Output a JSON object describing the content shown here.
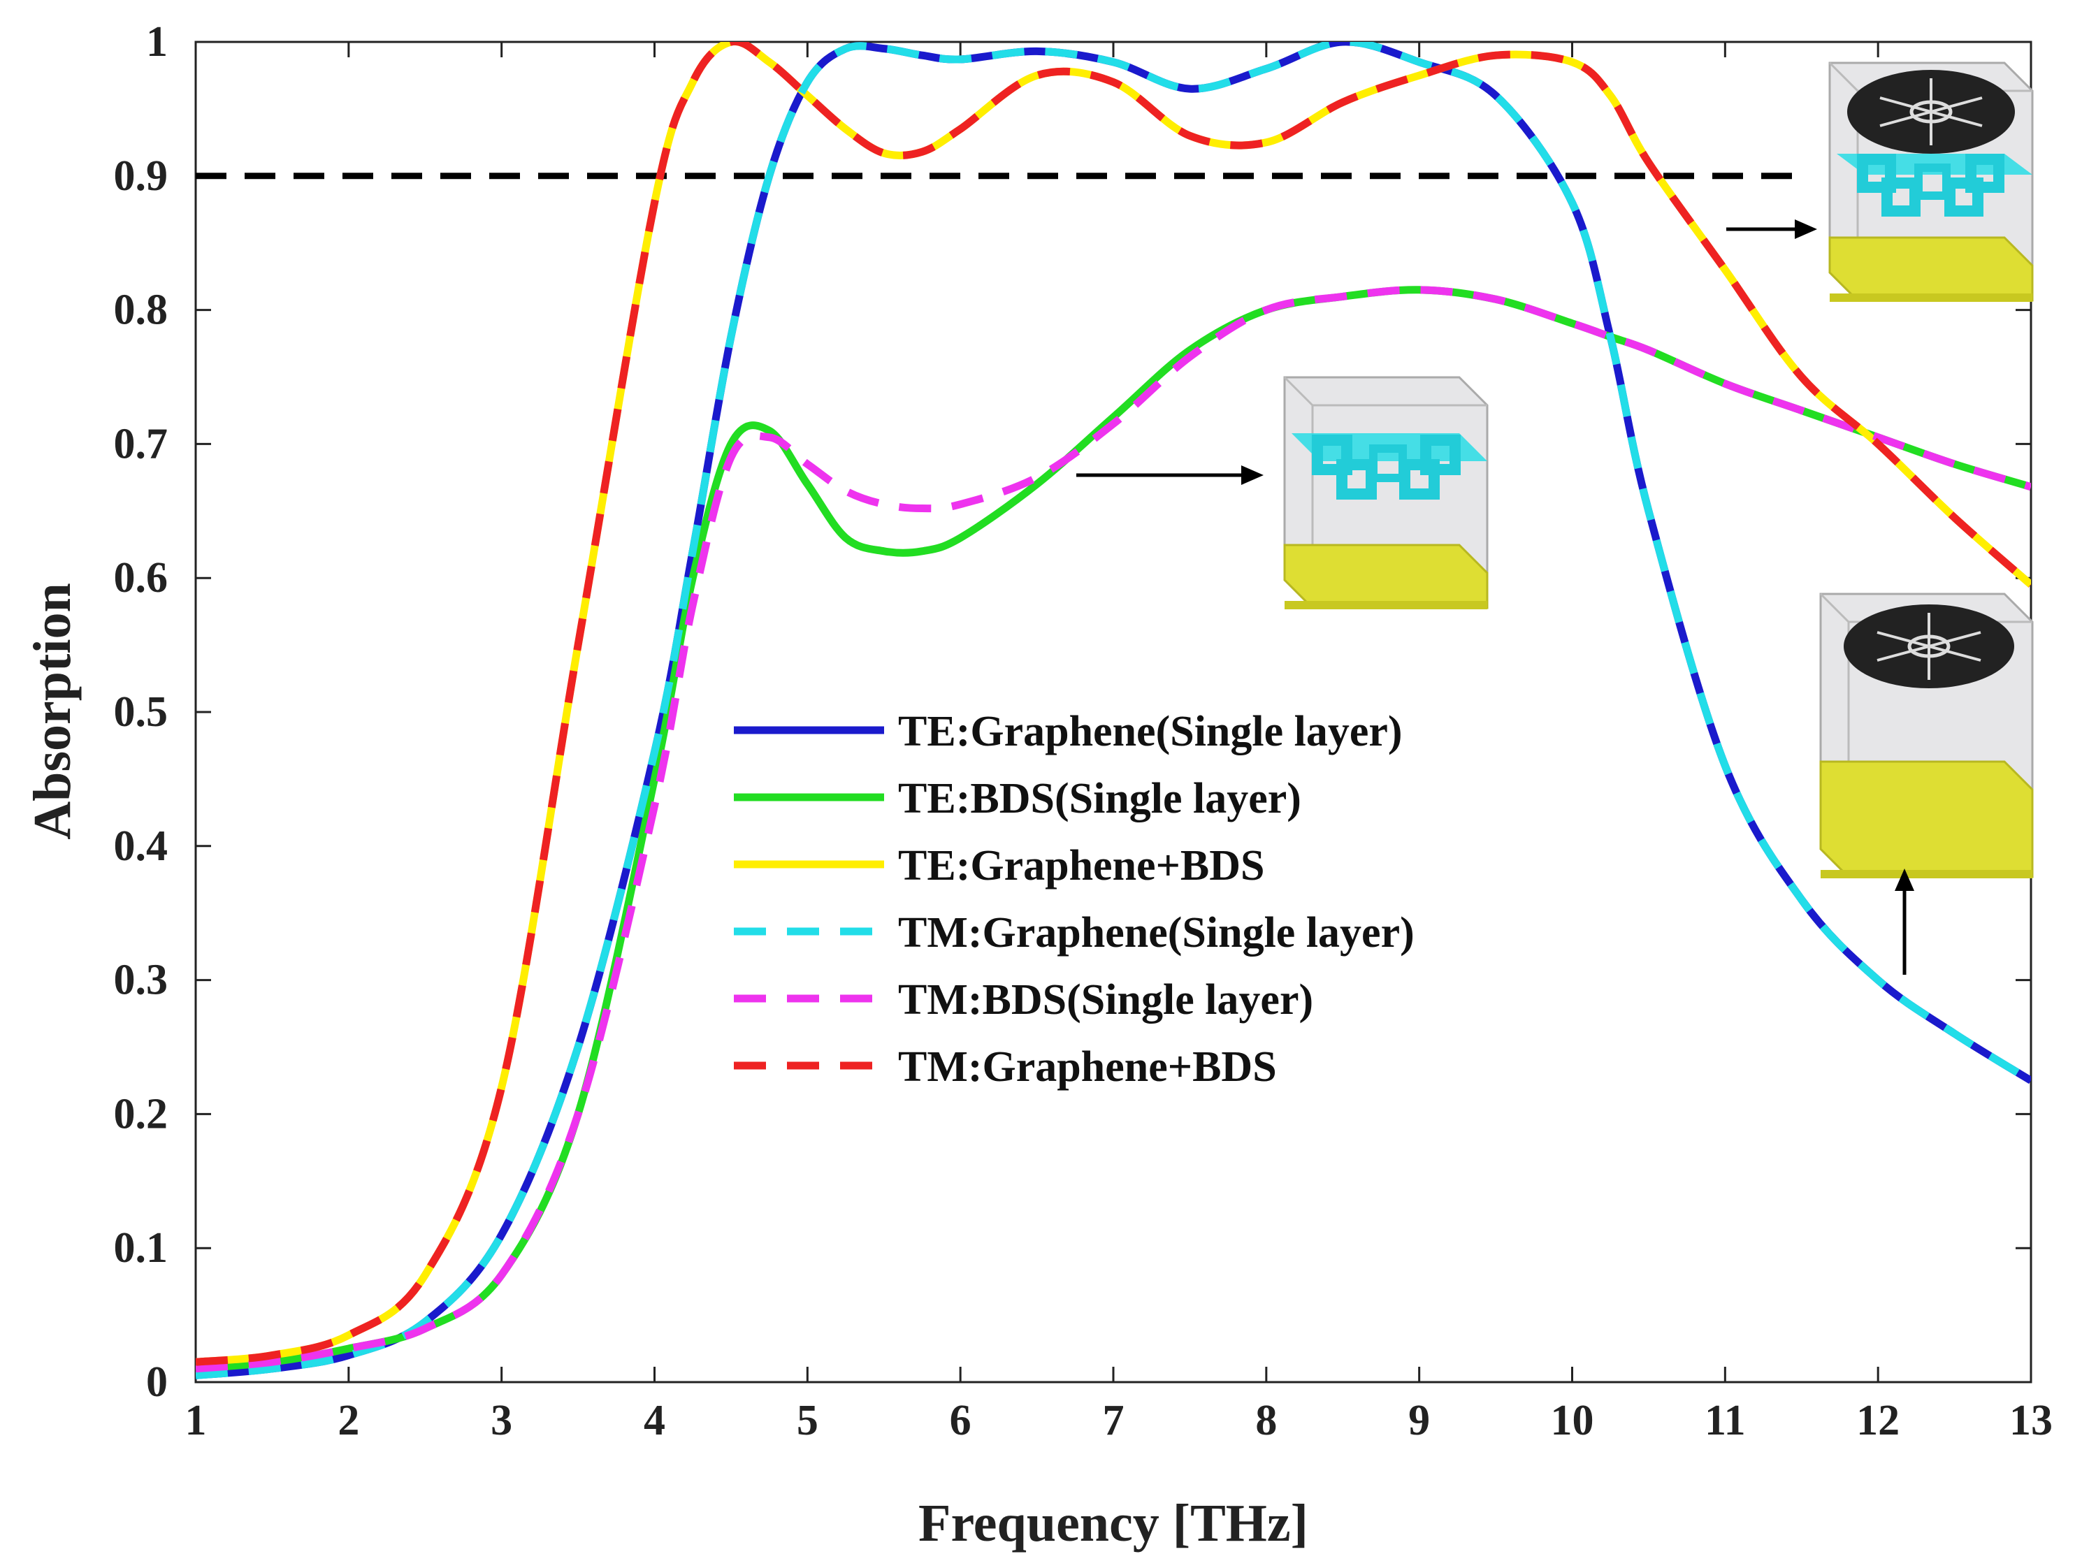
{
  "chart_data": {
    "type": "line",
    "title": "",
    "xlabel": "Frequency [THz]",
    "ylabel": "Absorption",
    "xlim": [
      1,
      13
    ],
    "ylim": [
      0,
      1
    ],
    "xticks": [
      "1",
      "2",
      "3",
      "4",
      "5",
      "6",
      "7",
      "8",
      "9",
      "10",
      "11",
      "12",
      "13"
    ],
    "yticks": [
      "0",
      "0.1",
      "0.2",
      "0.3",
      "0.4",
      "0.5",
      "0.6",
      "0.7",
      "0.8",
      "0.9",
      "1"
    ],
    "x": [
      1,
      1.5,
      2,
      2.5,
      3,
      3.5,
      4,
      4.25,
      4.5,
      4.75,
      5,
      5.25,
      5.5,
      5.75,
      6,
      6.5,
      7,
      7.5,
      8,
      8.5,
      9,
      9.5,
      10,
      10.25,
      10.5,
      11,
      11.5,
      12,
      12.5,
      13
    ],
    "reference_line": {
      "y": 0.9,
      "label": "",
      "color": "#000000"
    },
    "series": [
      {
        "name": "TE:Graphene(Single layer)",
        "color": "#1a1acc",
        "dash": "solid",
        "values": [
          0.005,
          0.01,
          0.02,
          0.045,
          0.11,
          0.25,
          0.47,
          0.62,
          0.78,
          0.9,
          0.97,
          0.995,
          0.995,
          0.99,
          0.987,
          0.993,
          0.985,
          0.965,
          0.98,
          1.0,
          0.985,
          0.96,
          0.88,
          0.78,
          0.65,
          0.46,
          0.36,
          0.3,
          0.26,
          0.225
        ]
      },
      {
        "name": "TE:BDS(Single layer)",
        "color": "#22dd22",
        "dash": "solid",
        "values": [
          0.01,
          0.015,
          0.025,
          0.04,
          0.08,
          0.2,
          0.45,
          0.6,
          0.7,
          0.71,
          0.67,
          0.63,
          0.62,
          0.62,
          0.63,
          0.67,
          0.72,
          0.77,
          0.8,
          0.81,
          0.815,
          0.808,
          0.79,
          0.78,
          0.77,
          0.745,
          0.725,
          0.705,
          0.685,
          0.668
        ]
      },
      {
        "name": "TE:Graphene+BDS",
        "color": "#ffee00",
        "dash": "solid",
        "values": [
          0.015,
          0.02,
          0.035,
          0.08,
          0.22,
          0.55,
          0.88,
          0.97,
          1.0,
          0.985,
          0.96,
          0.935,
          0.917,
          0.918,
          0.935,
          0.975,
          0.97,
          0.93,
          0.925,
          0.955,
          0.975,
          0.99,
          0.985,
          0.96,
          0.91,
          0.83,
          0.75,
          0.7,
          0.645,
          0.595
        ]
      },
      {
        "name": "TM:Graphene(Single layer)",
        "color": "#22dde8",
        "dash": "dashed",
        "values": [
          0.005,
          0.01,
          0.02,
          0.045,
          0.11,
          0.25,
          0.47,
          0.62,
          0.78,
          0.9,
          0.97,
          0.995,
          0.995,
          0.99,
          0.987,
          0.993,
          0.985,
          0.965,
          0.98,
          1.0,
          0.985,
          0.96,
          0.88,
          0.78,
          0.65,
          0.46,
          0.36,
          0.3,
          0.26,
          0.225
        ]
      },
      {
        "name": "TM:BDS(Single layer)",
        "color": "#ee33ee",
        "dash": "dashed",
        "values": [
          0.01,
          0.015,
          0.025,
          0.04,
          0.08,
          0.2,
          0.43,
          0.58,
          0.69,
          0.705,
          0.685,
          0.665,
          0.655,
          0.652,
          0.655,
          0.675,
          0.715,
          0.765,
          0.8,
          0.81,
          0.815,
          0.808,
          0.79,
          0.78,
          0.77,
          0.745,
          0.725,
          0.705,
          0.685,
          0.668
        ]
      },
      {
        "name": "TM:Graphene+BDS",
        "color": "#ee2222",
        "dash": "dashed",
        "values": [
          0.015,
          0.02,
          0.035,
          0.08,
          0.22,
          0.55,
          0.88,
          0.97,
          1.0,
          0.985,
          0.96,
          0.935,
          0.917,
          0.918,
          0.935,
          0.975,
          0.97,
          0.93,
          0.925,
          0.955,
          0.975,
          0.99,
          0.985,
          0.96,
          0.91,
          0.83,
          0.75,
          0.7,
          0.645,
          0.595
        ]
      }
    ]
  },
  "insets": [
    {
      "name": "inset-graphene-bds",
      "description_icon": "unit-cell-graphene-plus-bds-icon"
    },
    {
      "name": "inset-graphene-only",
      "description_icon": "unit-cell-graphene-icon"
    },
    {
      "name": "inset-bds-only",
      "description_icon": "unit-cell-bds-icon"
    }
  ]
}
